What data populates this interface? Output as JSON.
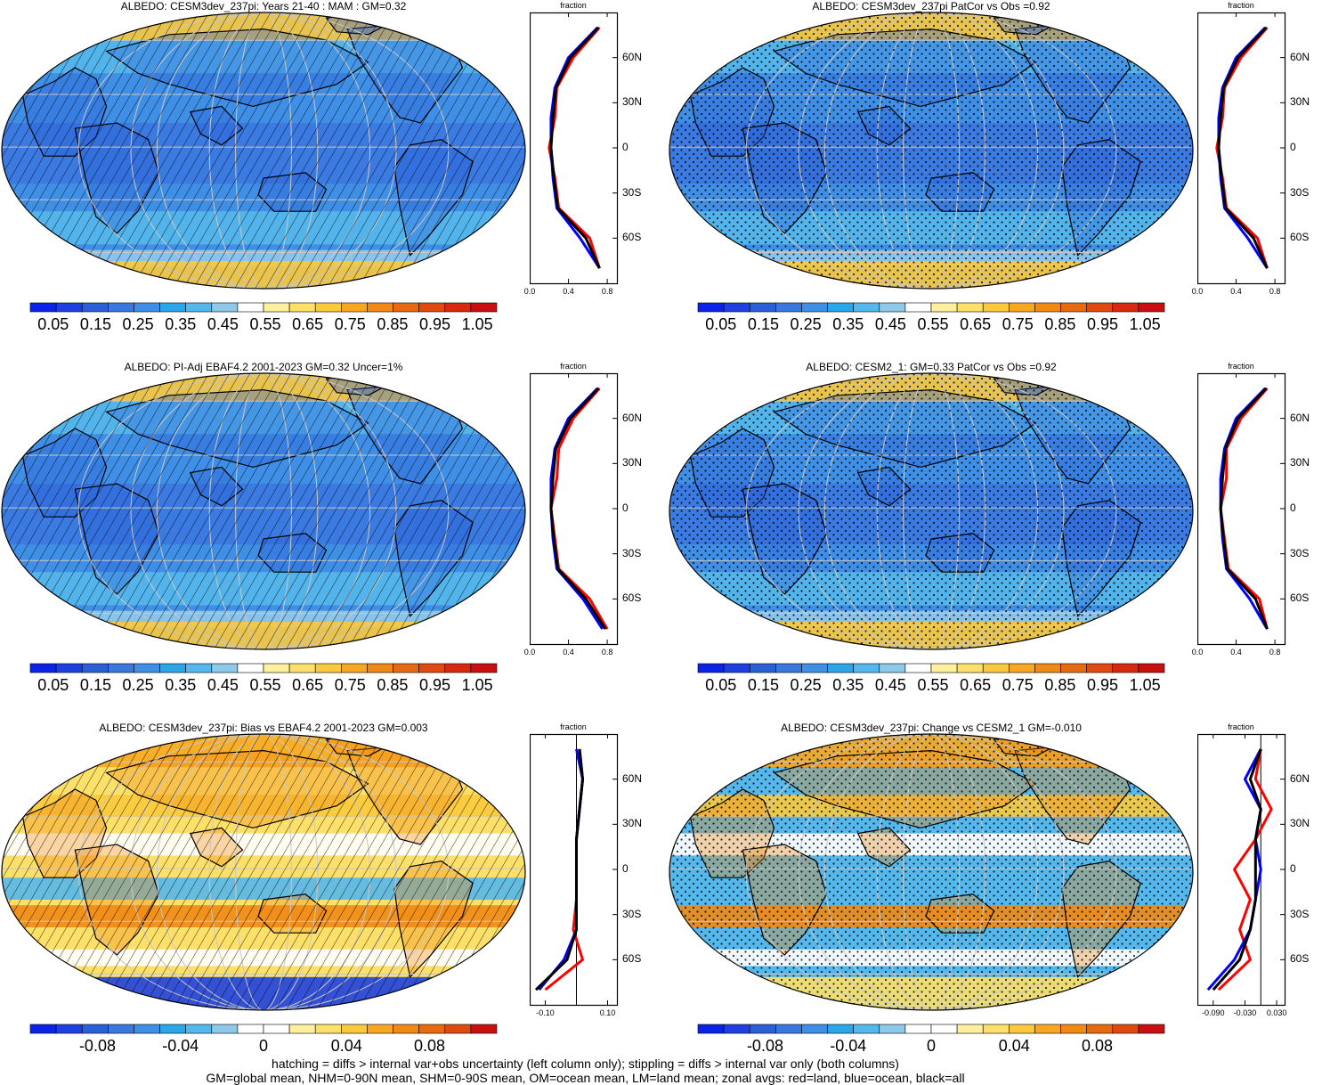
{
  "colors": {
    "abs_scale": [
      "#0a23e6",
      "#1e40e0",
      "#2a5fd8",
      "#3a78e0",
      "#3f8fe6",
      "#2ba6e8",
      "#55b8ec",
      "#8fc9ea",
      "#ffffff",
      "#fff0a0",
      "#fde06a",
      "#fbc93c",
      "#f8a820",
      "#f08a14",
      "#e86a10",
      "#e04a10",
      "#d82810",
      "#c81010"
    ],
    "diff_scale": [
      "#0a23e6",
      "#1e40e0",
      "#2a5fd8",
      "#3a78e0",
      "#3f8fe6",
      "#2ba6e8",
      "#55b8ec",
      "#8fc9ea",
      "#ffffff",
      "#ffffff",
      "#fff0a0",
      "#fde06a",
      "#fbc93c",
      "#f8a820",
      "#f08a14",
      "#e86a10",
      "#e04a10",
      "#c81010"
    ],
    "land": "#d2d2d2",
    "zonal_land": "#ff0000",
    "zonal_ocean": "#0000ff",
    "zonal_all": "#000000"
  },
  "panels": [
    {
      "id": "p1",
      "title": "ALBEDO: CESM3dev_237pi: Years 21-40 : MAM : GM=0.32",
      "base": "#3f8fe6",
      "pattern": "hatch",
      "kind": "abs",
      "cb_labels": [
        "0.05",
        "0.15",
        "0.25",
        "0.35",
        "0.45",
        "0.55",
        "0.65",
        "0.75",
        "0.85",
        "0.95",
        "1.05"
      ],
      "zonal_xlabels": [
        "0.0",
        "0.4",
        "0.8"
      ]
    },
    {
      "id": "p2",
      "title": "ALBEDO: CESM3dev_237pi PatCor vs Obs =0.92",
      "base": "#3f8fe6",
      "pattern": "stipple",
      "kind": "abs",
      "cb_labels": [
        "0.05",
        "0.15",
        "0.25",
        "0.35",
        "0.45",
        "0.55",
        "0.65",
        "0.75",
        "0.85",
        "0.95",
        "1.05"
      ],
      "zonal_xlabels": [
        "0.0",
        "0.4",
        "0.8"
      ]
    },
    {
      "id": "p3",
      "title": "ALBEDO: PI-Adj EBAF4.2 2001-2023 GM=0.32 Uncer=1%",
      "base": "#3f8fe6",
      "pattern": "hatch",
      "kind": "abs",
      "cb_labels": [
        "0.05",
        "0.15",
        "0.25",
        "0.35",
        "0.45",
        "0.55",
        "0.65",
        "0.75",
        "0.85",
        "0.95",
        "1.05"
      ],
      "zonal_xlabels": [
        "0.0",
        "0.4",
        "0.8"
      ]
    },
    {
      "id": "p4",
      "title": "ALBEDO: CESM2_1: GM=0.33 PatCor vs Obs =0.92",
      "base": "#3f8fe6",
      "pattern": "stipple",
      "kind": "abs",
      "cb_labels": [
        "0.05",
        "0.15",
        "0.25",
        "0.35",
        "0.45",
        "0.55",
        "0.65",
        "0.75",
        "0.85",
        "0.95",
        "1.05"
      ],
      "zonal_xlabels": [
        "0.0",
        "0.4",
        "0.8"
      ]
    },
    {
      "id": "p5",
      "title": "ALBEDO: CESM3dev_237pi: Bias vs EBAF4.2 2001-2023 GM=0.003",
      "base": "#fde06a",
      "pattern": "hatch",
      "kind": "diff",
      "cb_labels": [
        "-0.08",
        "-0.04",
        "0",
        "0.04",
        "0.08"
      ],
      "zonal_xlabels": [
        "-0.10",
        "0.10"
      ]
    },
    {
      "id": "p6",
      "title": "ALBEDO: CESM3dev_237pi: Change vs CESM2_1 GM=-0.010",
      "base": "#55b8ec",
      "pattern": "stipple",
      "kind": "diff",
      "cb_labels": [
        "-0.08",
        "-0.04",
        "0",
        "0.04",
        "0.08"
      ],
      "zonal_xlabels": [
        "-0.090",
        "-0.030",
        "0.030"
      ]
    }
  ],
  "lat_labels": [
    "60N",
    "30N",
    "0",
    "30S",
    "60S"
  ],
  "zonal_title": "fraction",
  "footer": {
    "line1": "hatching = diffs > internal var+obs uncertainty (left column only); stippling = diffs > internal var only (both columns)",
    "line2": "GM=global mean, NHM=0-90N mean, SHM=0-90S mean, OM=ocean mean, LM=land mean; zonal avgs: red=land, blue=ocean, black=all"
  },
  "chart_data": [
    {
      "type": "heatmap",
      "title": "ALBEDO: CESM3dev_237pi: Years 21-40 : MAM : GM=0.32",
      "colorbar": {
        "min": 0.0,
        "max": 1.1,
        "step": 0.05,
        "labels": [
          0.05,
          0.15,
          0.25,
          0.35,
          0.45,
          0.55,
          0.65,
          0.75,
          0.85,
          0.95,
          1.05
        ]
      },
      "zonal": {
        "xlim": [
          0.0,
          0.9
        ],
        "xticks": [
          0.0,
          0.4,
          0.8
        ],
        "lat": [
          -80,
          -60,
          -40,
          -20,
          0,
          20,
          40,
          60,
          80
        ],
        "series": [
          {
            "name": "land",
            "values": [
              0.72,
              0.62,
              0.3,
              0.26,
              0.2,
              0.26,
              0.28,
              0.45,
              0.72
            ]
          },
          {
            "name": "ocean",
            "values": [
              0.72,
              0.52,
              0.28,
              0.24,
              0.22,
              0.22,
              0.26,
              0.4,
              0.7
            ]
          },
          {
            "name": "all",
            "values": [
              0.72,
              0.58,
              0.29,
              0.25,
              0.22,
              0.24,
              0.27,
              0.42,
              0.71
            ]
          }
        ]
      }
    },
    {
      "type": "heatmap",
      "title": "ALBEDO: CESM3dev_237pi PatCor vs Obs =0.92",
      "colorbar": {
        "min": 0.0,
        "max": 1.1,
        "step": 0.05,
        "labels": [
          0.05,
          0.15,
          0.25,
          0.35,
          0.45,
          0.55,
          0.65,
          0.75,
          0.85,
          0.95,
          1.05
        ]
      },
      "zonal": {
        "xlim": [
          0.0,
          0.9
        ],
        "xticks": [
          0.0,
          0.4,
          0.8
        ],
        "lat": [
          -80,
          -60,
          -40,
          -20,
          0,
          20,
          40,
          60,
          80
        ],
        "series": [
          {
            "name": "land",
            "values": [
              0.72,
              0.62,
              0.3,
              0.26,
              0.2,
              0.26,
              0.28,
              0.45,
              0.72
            ]
          },
          {
            "name": "ocean",
            "values": [
              0.72,
              0.52,
              0.28,
              0.24,
              0.22,
              0.22,
              0.26,
              0.4,
              0.7
            ]
          },
          {
            "name": "all",
            "values": [
              0.72,
              0.58,
              0.29,
              0.25,
              0.22,
              0.24,
              0.27,
              0.42,
              0.71
            ]
          }
        ]
      }
    },
    {
      "type": "heatmap",
      "title": "ALBEDO: PI-Adj EBAF4.2 2001-2023 GM=0.32 Uncer=1%",
      "colorbar": {
        "min": 0.0,
        "max": 1.1,
        "step": 0.05,
        "labels": [
          0.05,
          0.15,
          0.25,
          0.35,
          0.45,
          0.55,
          0.65,
          0.75,
          0.85,
          0.95,
          1.05
        ]
      },
      "zonal": {
        "xlim": [
          0.0,
          0.9
        ],
        "xticks": [
          0.0,
          0.4,
          0.8
        ],
        "lat": [
          -80,
          -60,
          -40,
          -20,
          0,
          20,
          40,
          60,
          80
        ],
        "series": [
          {
            "name": "land",
            "values": [
              0.8,
              0.62,
              0.3,
              0.26,
              0.22,
              0.28,
              0.3,
              0.45,
              0.72
            ]
          },
          {
            "name": "ocean",
            "values": [
              0.75,
              0.55,
              0.28,
              0.24,
              0.22,
              0.22,
              0.26,
              0.4,
              0.7
            ]
          },
          {
            "name": "all",
            "values": [
              0.78,
              0.58,
              0.29,
              0.25,
              0.22,
              0.24,
              0.27,
              0.42,
              0.71
            ]
          }
        ]
      }
    },
    {
      "type": "heatmap",
      "title": "ALBEDO: CESM2_1: GM=0.33 PatCor vs Obs =0.92",
      "colorbar": {
        "min": 0.0,
        "max": 1.1,
        "step": 0.05,
        "labels": [
          0.05,
          0.15,
          0.25,
          0.35,
          0.45,
          0.55,
          0.65,
          0.75,
          0.85,
          0.95,
          1.05
        ]
      },
      "zonal": {
        "xlim": [
          0.0,
          0.9
        ],
        "xticks": [
          0.0,
          0.4,
          0.8
        ],
        "lat": [
          -80,
          -60,
          -40,
          -20,
          0,
          20,
          40,
          60,
          80
        ],
        "series": [
          {
            "name": "land",
            "values": [
              0.72,
              0.64,
              0.32,
              0.28,
              0.24,
              0.3,
              0.3,
              0.45,
              0.72
            ]
          },
          {
            "name": "ocean",
            "values": [
              0.72,
              0.54,
              0.3,
              0.26,
              0.24,
              0.24,
              0.28,
              0.4,
              0.7
            ]
          },
          {
            "name": "all",
            "values": [
              0.72,
              0.6,
              0.31,
              0.27,
              0.24,
              0.26,
              0.29,
              0.42,
              0.71
            ]
          }
        ]
      }
    },
    {
      "type": "heatmap",
      "title": "ALBEDO: CESM3dev_237pi: Bias vs EBAF4.2 2001-2023 GM=0.003",
      "colorbar": {
        "min": -0.1,
        "max": 0.1,
        "labels": [
          -0.08,
          -0.04,
          0,
          0.04,
          0.08
        ]
      },
      "zonal": {
        "xlim": [
          -0.15,
          0.13
        ],
        "xticks": [
          -0.1,
          0.1
        ],
        "lat": [
          -80,
          -60,
          -40,
          -20,
          0,
          20,
          40,
          60,
          80
        ],
        "series": [
          {
            "name": "land",
            "values": [
              -0.1,
              0.02,
              -0.01,
              0.0,
              0.0,
              0.0,
              0.01,
              0.02,
              0.01
            ]
          },
          {
            "name": "ocean",
            "values": [
              -0.12,
              -0.04,
              0.0,
              0.0,
              0.0,
              0.0,
              0.01,
              0.02,
              0.0
            ]
          },
          {
            "name": "all",
            "values": [
              -0.13,
              -0.03,
              0.0,
              0.0,
              0.0,
              0.0,
              0.01,
              0.02,
              0.01
            ]
          }
        ]
      }
    },
    {
      "type": "heatmap",
      "title": "ALBEDO: CESM3dev_237pi: Change vs CESM2_1 GM=-0.010",
      "colorbar": {
        "min": -0.1,
        "max": 0.1,
        "labels": [
          -0.08,
          -0.04,
          0,
          0.04,
          0.08
        ]
      },
      "zonal": {
        "xlim": [
          -0.12,
          0.045
        ],
        "xticks": [
          -0.09,
          -0.03,
          0.03
        ],
        "lat": [
          -80,
          -60,
          -40,
          -20,
          0,
          20,
          40,
          60,
          80
        ],
        "series": [
          {
            "name": "land",
            "values": [
              -0.08,
              -0.02,
              -0.04,
              -0.02,
              -0.05,
              -0.01,
              0.02,
              -0.01,
              0.0
            ]
          },
          {
            "name": "ocean",
            "values": [
              -0.1,
              -0.05,
              -0.02,
              -0.01,
              0.0,
              -0.01,
              0.0,
              -0.03,
              0.0
            ]
          },
          {
            "name": "all",
            "values": [
              -0.09,
              -0.04,
              -0.02,
              -0.01,
              -0.01,
              -0.01,
              0.0,
              -0.02,
              0.0
            ]
          }
        ]
      }
    }
  ]
}
